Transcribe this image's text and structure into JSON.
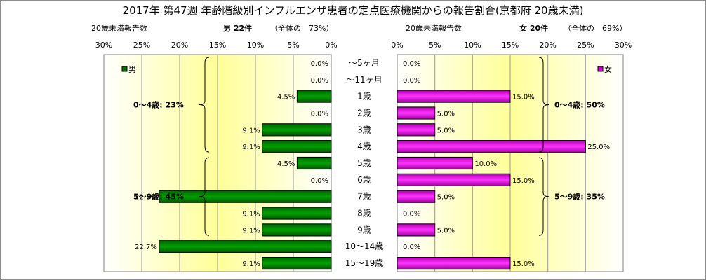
{
  "chart_data": {
    "type": "bar",
    "title": "2017年 第47週 年齢階級別インフルエンザ患者の定点医療機関からの報告割合(京都府 20歳未満)",
    "categories": [
      "～5ヶ月",
      "～11ヶ月",
      "1歳",
      "2歳",
      "3歳",
      "4歳",
      "5歳",
      "6歳",
      "7歳",
      "8歳",
      "9歳",
      "10～14歳",
      "15～19歳"
    ],
    "axis_ticks": [
      "0%",
      "5%",
      "10%",
      "15%",
      "20%",
      "25%",
      "30%"
    ],
    "xlim": [
      0,
      30
    ],
    "grid": true,
    "panels": [
      {
        "name": "男",
        "subtitle_left": "20歳未満報告数",
        "subtitle_main": "男 22件",
        "subtitle_share": "（全体の　73%）",
        "color": "#007700",
        "legend_position": "top-left",
        "values": [
          0.0,
          0.0,
          4.5,
          0.0,
          9.1,
          9.1,
          4.5,
          0.0,
          22.7,
          9.1,
          9.1,
          22.7,
          9.1
        ],
        "labels": [
          "0.0%",
          "0.0%",
          "4.5%",
          "0.0%",
          "9.1%",
          "9.1%",
          "4.5%",
          "0.0%",
          "22.7%",
          "9.1%",
          "9.1%",
          "22.7%",
          "9.1%"
        ],
        "groups": [
          {
            "label": "0～4歳: 23%",
            "from": 0,
            "to": 5
          },
          {
            "label": "5～9歳: 45%",
            "from": 6,
            "to": 10
          }
        ]
      },
      {
        "name": "女",
        "subtitle_left": "20歳未満報告数",
        "subtitle_main": "女 20件",
        "subtitle_share": "（全体の　69%）",
        "color": "#cc00cc",
        "legend_position": "top-right",
        "values": [
          0.0,
          0.0,
          15.0,
          5.0,
          5.0,
          25.0,
          10.0,
          15.0,
          5.0,
          0.0,
          5.0,
          0.0,
          15.0
        ],
        "labels": [
          "0.0%",
          "0.0%",
          "15.0%",
          "5.0%",
          "5.0%",
          "25.0%",
          "10.0%",
          "15.0%",
          "5.0%",
          "0.0%",
          "5.0%",
          "0.0%",
          "15.0%"
        ],
        "groups": [
          {
            "label": "0～4歳: 50%",
            "from": 0,
            "to": 5
          },
          {
            "label": "5～9歳: 35%",
            "from": 6,
            "to": 10
          }
        ]
      }
    ]
  }
}
